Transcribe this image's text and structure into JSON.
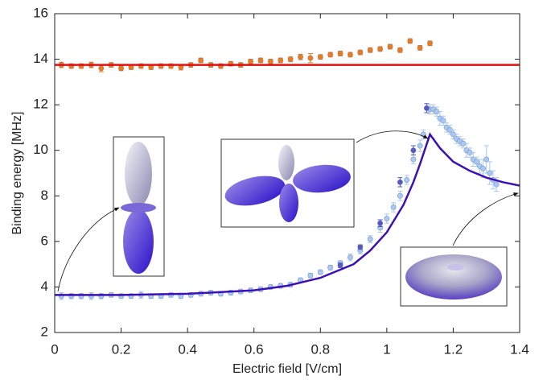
{
  "chart_data": {
    "type": "scatter",
    "xlabel": "Electric field [V/cm]",
    "ylabel": "Binding energy [MHz]",
    "xlim": [
      0,
      1.4
    ],
    "xticks": [
      0,
      0.2,
      0.4,
      0.6,
      0.8,
      1,
      1.2,
      1.4
    ],
    "ylim": [
      2,
      16
    ],
    "yticks": [
      2,
      4,
      6,
      8,
      10,
      12,
      14,
      16
    ],
    "series": [
      {
        "mode": "markers",
        "color": "#f27a14",
        "x": [
          0.02,
          0.05,
          0.08,
          0.11,
          0.14,
          0.17,
          0.2,
          0.23,
          0.26,
          0.29,
          0.32,
          0.35,
          0.38,
          0.41,
          0.44,
          0.47,
          0.5,
          0.53,
          0.56,
          0.59,
          0.62,
          0.65,
          0.68,
          0.71,
          0.74,
          0.77,
          0.8,
          0.83,
          0.86,
          0.89,
          0.92,
          0.95,
          0.98,
          1.01,
          1.04,
          1.07,
          1.1,
          1.13
        ],
        "values": [
          13.75,
          13.7,
          13.7,
          13.75,
          13.6,
          13.75,
          13.6,
          13.65,
          13.7,
          13.65,
          13.7,
          13.7,
          13.65,
          13.75,
          13.95,
          13.75,
          13.7,
          13.8,
          13.75,
          13.9,
          13.95,
          13.9,
          13.95,
          14.0,
          14.1,
          14.05,
          14.1,
          14.2,
          14.25,
          14.2,
          14.3,
          14.4,
          14.45,
          14.55,
          14.4,
          14.8,
          14.5,
          14.7
        ],
        "errors": [
          0.12,
          0.1,
          0.1,
          0.12,
          0.15,
          0.1,
          0.1,
          0.1,
          0.1,
          0.1,
          0.1,
          0.1,
          0.12,
          0.1,
          0.1,
          0.1,
          0.1,
          0.1,
          0.1,
          0.1,
          0.1,
          0.1,
          0.1,
          0.1,
          0.12,
          0.2,
          0.1,
          0.1,
          0.1,
          0.1,
          0.1,
          0.1,
          0.1,
          0.1,
          0.1,
          0.1,
          0.1,
          0.1
        ]
      },
      {
        "mode": "line",
        "color": "#e01010",
        "x": [
          0,
          1.4
        ],
        "values": [
          13.75,
          13.75
        ]
      },
      {
        "mode": "markers",
        "color": "#aac8f0",
        "x": [
          0.02,
          0.05,
          0.08,
          0.11,
          0.14,
          0.17,
          0.2,
          0.23,
          0.26,
          0.29,
          0.32,
          0.35,
          0.38,
          0.41,
          0.44,
          0.47,
          0.5,
          0.53,
          0.56,
          0.59,
          0.62,
          0.65,
          0.68,
          0.71,
          0.74,
          0.77,
          0.8,
          0.83,
          0.86,
          0.89,
          0.92,
          0.95,
          0.98,
          1.0,
          1.02,
          1.04,
          1.06,
          1.08,
          1.1,
          1.11,
          1.13,
          1.14,
          1.15,
          1.16,
          1.17,
          1.18,
          1.19,
          1.2,
          1.21,
          1.22,
          1.23,
          1.24,
          1.25,
          1.26,
          1.27,
          1.28,
          1.29,
          1.3,
          1.31,
          1.32,
          1.33
        ],
        "values": [
          3.6,
          3.6,
          3.6,
          3.6,
          3.6,
          3.65,
          3.6,
          3.6,
          3.65,
          3.6,
          3.6,
          3.65,
          3.6,
          3.65,
          3.7,
          3.75,
          3.7,
          3.75,
          3.8,
          3.85,
          3.9,
          4.0,
          4.05,
          4.1,
          4.3,
          4.5,
          4.65,
          4.85,
          5.05,
          5.3,
          5.6,
          6.1,
          6.6,
          7.0,
          7.5,
          8.0,
          8.7,
          9.6,
          10.2,
          10.7,
          11.8,
          11.8,
          11.7,
          11.4,
          11.3,
          11.0,
          10.9,
          10.7,
          10.5,
          10.4,
          10.3,
          10.0,
          9.9,
          9.6,
          9.5,
          9.3,
          9.2,
          9.6,
          9.0,
          8.7,
          8.5
        ],
        "errors": [
          0.15,
          0.12,
          0.12,
          0.15,
          0.12,
          0.1,
          0.1,
          0.1,
          0.15,
          0.1,
          0.1,
          0.1,
          0.1,
          0.1,
          0.1,
          0.1,
          0.1,
          0.1,
          0.1,
          0.1,
          0.1,
          0.1,
          0.1,
          0.1,
          0.1,
          0.1,
          0.1,
          0.1,
          0.1,
          0.15,
          0.15,
          0.15,
          0.2,
          0.2,
          0.2,
          0.2,
          0.2,
          0.2,
          0.25,
          0.2,
          0.2,
          0.2,
          0.2,
          0.3,
          0.2,
          0.2,
          0.2,
          0.2,
          0.2,
          0.2,
          0.2,
          0.3,
          0.2,
          0.3,
          0.2,
          0.3,
          0.4,
          0.6,
          0.5,
          0.4,
          0.3
        ]
      },
      {
        "mode": "markers",
        "color": "#5a58c0",
        "x": [
          0.86,
          0.92,
          0.98,
          1.04,
          1.08,
          1.12
        ],
        "values": [
          4.95,
          5.75,
          6.8,
          8.6,
          10.0,
          11.85
        ],
        "errors": [
          0.1,
          0.1,
          0.15,
          0.2,
          0.2,
          0.2
        ]
      },
      {
        "mode": "line",
        "color": "#3a10b8",
        "x": [
          0,
          0.2,
          0.4,
          0.6,
          0.7,
          0.8,
          0.9,
          0.95,
          1.0,
          1.05,
          1.08,
          1.1,
          1.13,
          1.16,
          1.2,
          1.25,
          1.3,
          1.35,
          1.4
        ],
        "values": [
          3.65,
          3.65,
          3.7,
          3.85,
          4.05,
          4.4,
          5.0,
          5.6,
          6.4,
          7.6,
          8.6,
          9.4,
          10.7,
          10.1,
          9.5,
          9.1,
          8.8,
          8.6,
          8.45
        ]
      }
    ]
  }
}
